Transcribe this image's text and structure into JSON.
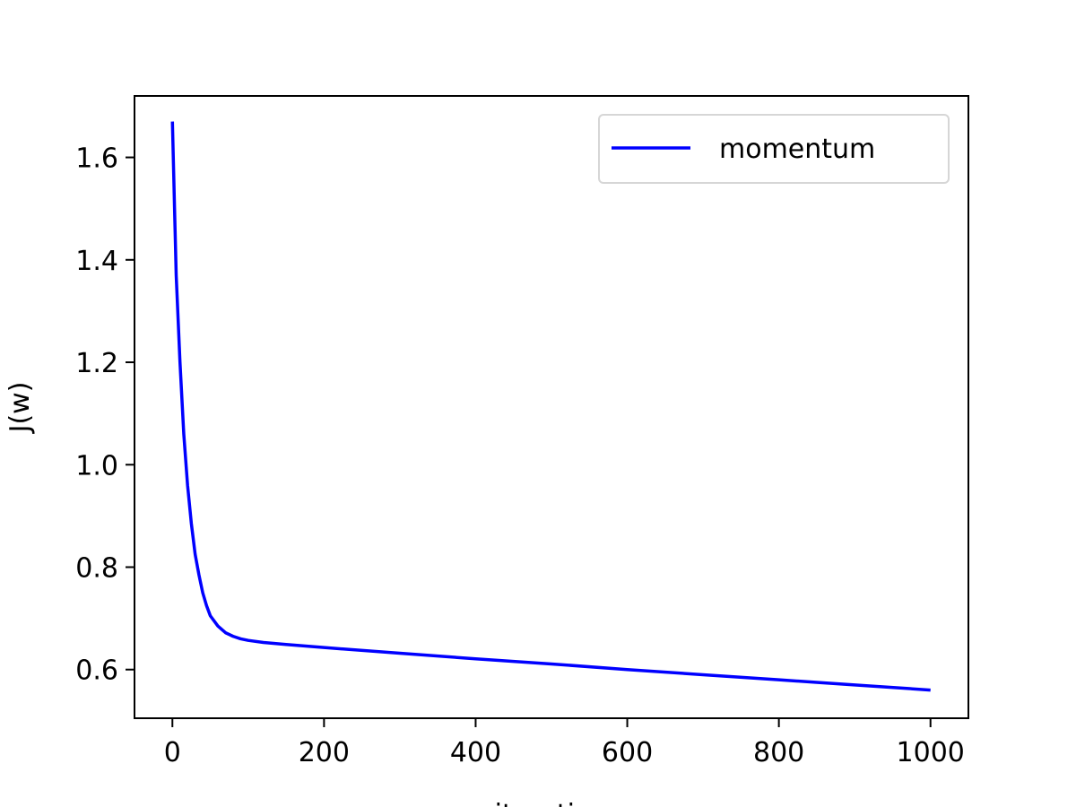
{
  "chart_data": {
    "type": "line",
    "title": "",
    "xlabel": "iteration",
    "ylabel": "J(w)",
    "xlim": [
      -50,
      1050
    ],
    "ylim": [
      0.505,
      1.72
    ],
    "xticks": [
      0,
      200,
      400,
      600,
      800,
      1000
    ],
    "xtick_labels": [
      "0",
      "200",
      "400",
      "600",
      "800",
      "1000"
    ],
    "yticks": [
      0.6,
      0.8,
      1.0,
      1.2,
      1.4,
      1.6
    ],
    "ytick_labels": [
      "0.6",
      "0.8",
      "1.0",
      "1.2",
      "1.4",
      "1.6"
    ],
    "grid": false,
    "legend": {
      "placement": "top-right",
      "entries": [
        "momentum"
      ]
    },
    "series": [
      {
        "name": "momentum",
        "color": "#0000ff",
        "x": [
          0,
          5,
          10,
          15,
          20,
          25,
          30,
          35,
          40,
          45,
          50,
          60,
          70,
          80,
          90,
          100,
          120,
          150,
          200,
          300,
          400,
          500,
          600,
          700,
          800,
          900,
          1000
        ],
        "y": [
          1.67,
          1.37,
          1.2,
          1.06,
          0.96,
          0.885,
          0.825,
          0.785,
          0.75,
          0.725,
          0.705,
          0.685,
          0.672,
          0.665,
          0.66,
          0.657,
          0.653,
          0.649,
          0.643,
          0.632,
          0.621,
          0.611,
          0.6,
          0.59,
          0.58,
          0.57,
          0.56
        ]
      }
    ]
  }
}
